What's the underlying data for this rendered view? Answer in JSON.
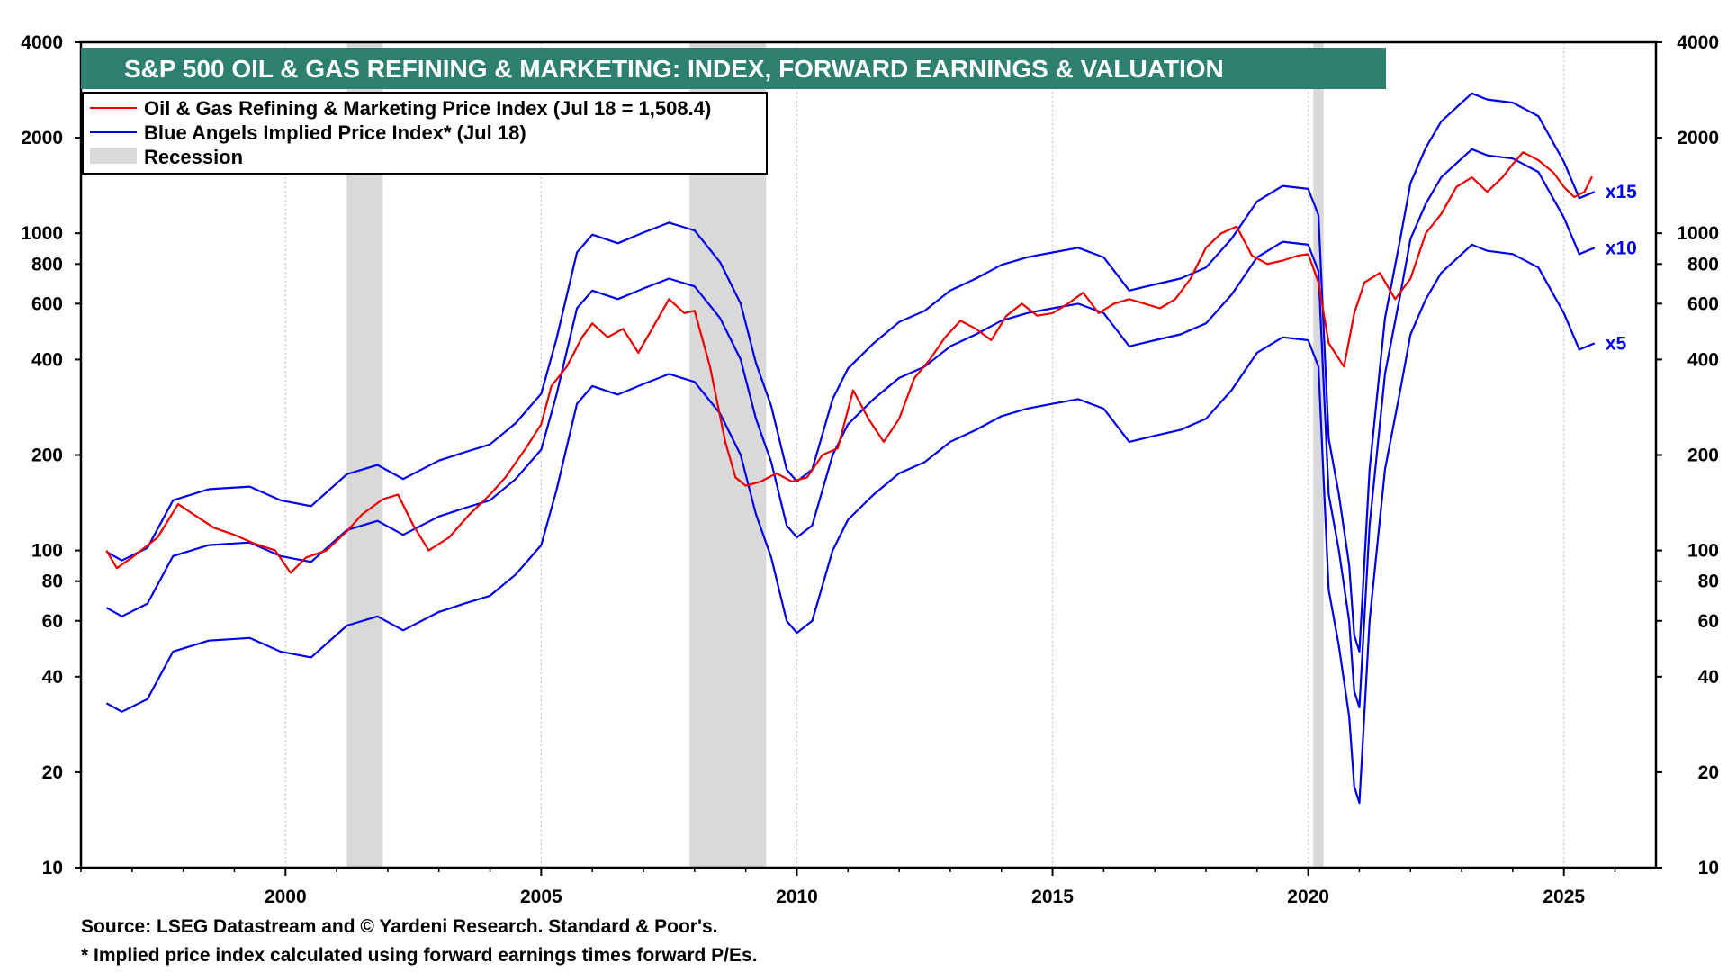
{
  "chart_data": {
    "type": "line",
    "title": "S&P 500 OIL & GAS REFINING & MARKETING: INDEX, FORWARD EARNINGS & VALUATION",
    "y_scale": "log",
    "ylim": [
      10,
      4000
    ],
    "xlim": [
      1996.0,
      2026.8
    ],
    "y_ticks": [
      10,
      20,
      40,
      60,
      80,
      100,
      200,
      400,
      600,
      800,
      1000,
      2000,
      4000
    ],
    "y_tick_labels": [
      "10",
      "20",
      "40",
      "60",
      "80",
      "100",
      "200",
      "400",
      "600",
      "800",
      "1000",
      "2000",
      "4000"
    ],
    "x_ticks": [
      2000,
      2005,
      2010,
      2015,
      2020,
      2025
    ],
    "x_tick_labels": [
      "2000",
      "2005",
      "2010",
      "2015",
      "2020",
      "2025"
    ],
    "grid": true,
    "legend_position": "top-left",
    "legend": [
      {
        "label": "Oil & Gas Refining & Marketing Price Index (Jul 18 = 1,508.4)",
        "color": "#ee0000",
        "kind": "line"
      },
      {
        "label": "Blue Angels Implied Price Index* (Jul 18)",
        "color": "#0000ee",
        "kind": "line"
      },
      {
        "label": "Recession",
        "color": "#d9d9d9",
        "kind": "box"
      }
    ],
    "recessions": [
      [
        2001.2,
        2001.9
      ],
      [
        2007.9,
        2009.4
      ],
      [
        2020.1,
        2020.3
      ]
    ],
    "multiple_labels": [
      "x15",
      "x10",
      "x5"
    ],
    "forward_earnings_implied": {
      "x": [
        1996.5,
        1996.8,
        1997.3,
        1997.8,
        1998.5,
        1999.3,
        1999.9,
        2000.5,
        2001.2,
        2001.8,
        2002.3,
        2003.0,
        2003.5,
        2004.0,
        2004.5,
        2005.0,
        2005.3,
        2005.7,
        2006.0,
        2006.5,
        2007.0,
        2007.5,
        2008.0,
        2008.5,
        2008.9,
        2009.2,
        2009.5,
        2009.8,
        2010.0,
        2010.3,
        2010.7,
        2011.0,
        2011.5,
        2012.0,
        2012.5,
        2013.0,
        2013.5,
        2014.0,
        2014.5,
        2015.0,
        2015.5,
        2016.0,
        2016.5,
        2017.0,
        2017.5,
        2018.0,
        2018.5,
        2019.0,
        2019.5,
        2020.0,
        2020.2,
        2020.4,
        2020.6,
        2020.8,
        2020.9,
        2021.0,
        2021.2,
        2021.5,
        2021.8,
        2022.0,
        2022.3,
        2022.6,
        2023.0,
        2023.2,
        2023.5,
        2024.0,
        2024.5,
        2025.0,
        2025.3,
        2025.6
      ],
      "x5": [
        33,
        31,
        34,
        48,
        52,
        53,
        48,
        46,
        58,
        62,
        56,
        64,
        68,
        72,
        84,
        104,
        155,
        290,
        330,
        310,
        335,
        360,
        340,
        270,
        200,
        130,
        95,
        60,
        55,
        60,
        100,
        125,
        150,
        175,
        190,
        220,
        240,
        265,
        280,
        290,
        300,
        280,
        220,
        230,
        240,
        260,
        320,
        420,
        470,
        460,
        380,
        75,
        50,
        30,
        18,
        16,
        60,
        180,
        320,
        480,
        620,
        750,
        860,
        920,
        880,
        860,
        780,
        560,
        430,
        450
      ],
      "x10": [
        66,
        62,
        68,
        96,
        104,
        106,
        96,
        92,
        116,
        124,
        112,
        128,
        136,
        144,
        168,
        208,
        310,
        580,
        660,
        620,
        670,
        720,
        680,
        540,
        400,
        260,
        190,
        120,
        110,
        120,
        200,
        250,
        300,
        350,
        380,
        440,
        480,
        530,
        560,
        580,
        600,
        560,
        440,
        460,
        480,
        520,
        640,
        840,
        940,
        920,
        760,
        150,
        100,
        60,
        36,
        32,
        120,
        360,
        640,
        960,
        1240,
        1500,
        1720,
        1840,
        1760,
        1720,
        1560,
        1120,
        860,
        900
      ],
      "x15": [
        99,
        93,
        102,
        144,
        156,
        159,
        144,
        138,
        174,
        186,
        168,
        192,
        204,
        216,
        252,
        312,
        465,
        870,
        990,
        930,
        1005,
        1080,
        1020,
        810,
        600,
        390,
        285,
        180,
        165,
        180,
        300,
        375,
        450,
        525,
        570,
        660,
        720,
        795,
        840,
        870,
        900,
        840,
        660,
        690,
        720,
        780,
        960,
        1260,
        1410,
        1380,
        1140,
        225,
        150,
        90,
        54,
        48,
        180,
        540,
        960,
        1440,
        1860,
        2250,
        2580,
        2760,
        2640,
        2580,
        2340,
        1680,
        1290,
        1350
      ]
    },
    "price_index": {
      "x": [
        1996.5,
        1996.7,
        1997.0,
        1997.5,
        1997.9,
        1998.2,
        1998.6,
        1999.0,
        1999.4,
        1999.8,
        2000.1,
        2000.4,
        2000.8,
        2001.2,
        2001.5,
        2001.9,
        2002.2,
        2002.5,
        2002.8,
        2003.2,
        2003.6,
        2004.0,
        2004.3,
        2004.7,
        2005.0,
        2005.2,
        2005.5,
        2005.8,
        2006.0,
        2006.3,
        2006.6,
        2006.9,
        2007.2,
        2007.5,
        2007.8,
        2008.0,
        2008.3,
        2008.6,
        2008.8,
        2009.0,
        2009.3,
        2009.6,
        2009.9,
        2010.2,
        2010.5,
        2010.8,
        2011.1,
        2011.4,
        2011.7,
        2012.0,
        2012.3,
        2012.6,
        2012.9,
        2013.2,
        2013.5,
        2013.8,
        2014.1,
        2014.4,
        2014.7,
        2015.0,
        2015.3,
        2015.6,
        2015.9,
        2016.2,
        2016.5,
        2016.8,
        2017.1,
        2017.4,
        2017.7,
        2018.0,
        2018.3,
        2018.6,
        2018.9,
        2019.2,
        2019.5,
        2019.8,
        2020.0,
        2020.2,
        2020.4,
        2020.7,
        2020.9,
        2021.1,
        2021.4,
        2021.7,
        2022.0,
        2022.3,
        2022.6,
        2022.9,
        2023.2,
        2023.5,
        2023.8,
        2024.0,
        2024.2,
        2024.5,
        2024.8,
        2025.0,
        2025.2,
        2025.4,
        2025.55
      ],
      "values": [
        100,
        88,
        95,
        110,
        140,
        130,
        118,
        112,
        105,
        100,
        85,
        95,
        100,
        115,
        130,
        145,
        150,
        120,
        100,
        110,
        130,
        150,
        170,
        210,
        250,
        330,
        380,
        470,
        520,
        470,
        500,
        420,
        510,
        620,
        560,
        570,
        380,
        220,
        170,
        160,
        165,
        175,
        165,
        170,
        200,
        210,
        320,
        260,
        220,
        260,
        350,
        400,
        470,
        530,
        500,
        460,
        550,
        600,
        550,
        560,
        600,
        650,
        560,
        600,
        620,
        600,
        580,
        620,
        720,
        900,
        1000,
        1050,
        850,
        800,
        820,
        850,
        860,
        700,
        450,
        380,
        560,
        700,
        750,
        620,
        720,
        1000,
        1150,
        1400,
        1500,
        1350,
        1500,
        1650,
        1800,
        1700,
        1550,
        1400,
        1300,
        1350,
        1508.4
      ]
    }
  },
  "footnotes": {
    "source": "Source: LSEG Datastream and © Yardeni Research. Standard & Poor's.",
    "note": "* Implied price index calculated using forward earnings times forward P/Es."
  }
}
